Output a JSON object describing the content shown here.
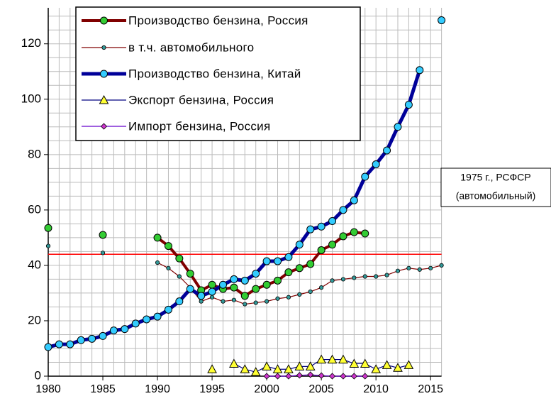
{
  "chart_data": {
    "type": "line",
    "x": [
      1980,
      1981,
      1982,
      1983,
      1984,
      1985,
      1986,
      1987,
      1988,
      1989,
      1990,
      1991,
      1992,
      1993,
      1994,
      1995,
      1996,
      1997,
      1998,
      1999,
      2000,
      2001,
      2002,
      2003,
      2004,
      2005,
      2006,
      2007,
      2008,
      2009,
      2010,
      2011,
      2012,
      2013,
      2014,
      2015,
      2016
    ],
    "xlim": [
      1980,
      2016
    ],
    "xticks": [
      1980,
      1985,
      1990,
      1995,
      2000,
      2005,
      2010,
      2015
    ],
    "ylim": [
      0,
      133
    ],
    "yticks": [
      0,
      20,
      40,
      60,
      80,
      100,
      120
    ],
    "grid": true,
    "xgrid_step": 1,
    "ygrid_step": 5,
    "series": [
      {
        "name": "Производство бензина, Россия",
        "color": "#800000",
        "marker_color": "#33cc33",
        "marker": "circle",
        "line_width": 4,
        "values": [
          53.5,
          null,
          null,
          null,
          null,
          51,
          null,
          null,
          null,
          null,
          50,
          47,
          42.5,
          37,
          31,
          33,
          31.5,
          32,
          29,
          31.5,
          33,
          34.5,
          37.5,
          39,
          40.5,
          45.5,
          47.5,
          50.5,
          52,
          51.5,
          null,
          null,
          null,
          null,
          null,
          null,
          null
        ]
      },
      {
        "name": "в т.ч. автомобильного",
        "color": "#800000",
        "marker_color": "#339999",
        "marker": "small",
        "line_width": 1.2,
        "values": [
          47,
          null,
          null,
          null,
          null,
          44.5,
          null,
          null,
          null,
          null,
          41,
          39,
          36,
          32,
          27,
          28.5,
          27,
          27.5,
          26,
          26.5,
          27,
          28,
          28.5,
          29.5,
          30.5,
          32,
          34.5,
          35,
          35.5,
          36,
          36,
          36.5,
          38,
          39,
          38.5,
          39,
          40
        ]
      },
      {
        "name": "Производство бензина, Китай",
        "color": "#000099",
        "marker_color": "#33ccff",
        "marker": "circle",
        "line_width": 5,
        "values": [
          10.5,
          11.5,
          11.5,
          13,
          13.5,
          14.5,
          16.5,
          17,
          19,
          20.5,
          21.5,
          24,
          27,
          31.5,
          29,
          30.5,
          33,
          35,
          34.5,
          37,
          41.5,
          41.5,
          43,
          47.5,
          53,
          54,
          56,
          60,
          63.5,
          72,
          76.5,
          81.5,
          90,
          98,
          110.5,
          null,
          128.5
        ]
      },
      {
        "name": "Экспорт бензина, Россия",
        "color": "#000080",
        "marker_color": "#ffff33",
        "marker": "triangle",
        "line_width": 1.2,
        "values": [
          null,
          null,
          null,
          null,
          null,
          null,
          null,
          null,
          null,
          null,
          null,
          null,
          null,
          null,
          null,
          2.5,
          null,
          4.5,
          2.5,
          1.5,
          3.5,
          2.5,
          2.5,
          3.5,
          3.5,
          6,
          6,
          6,
          4.5,
          4.5,
          2.5,
          4,
          3,
          4,
          null,
          null,
          null
        ]
      },
      {
        "name": "Импорт бензина, Россия",
        "color": "#6600cc",
        "marker_color": "#cc33cc",
        "marker": "diamond",
        "line_width": 1.2,
        "values": [
          null,
          null,
          null,
          null,
          null,
          null,
          null,
          null,
          null,
          null,
          null,
          null,
          null,
          null,
          null,
          null,
          null,
          null,
          null,
          null,
          0,
          0,
          0,
          0.3,
          0.5,
          0.2,
          0,
          0,
          0,
          0,
          null,
          null,
          null,
          null,
          null,
          null,
          null
        ]
      }
    ],
    "reference_line": {
      "value": 44,
      "color": "#ff0000",
      "label": [
        "1975 г., РСФСР",
        "(автомобильный)"
      ]
    }
  }
}
